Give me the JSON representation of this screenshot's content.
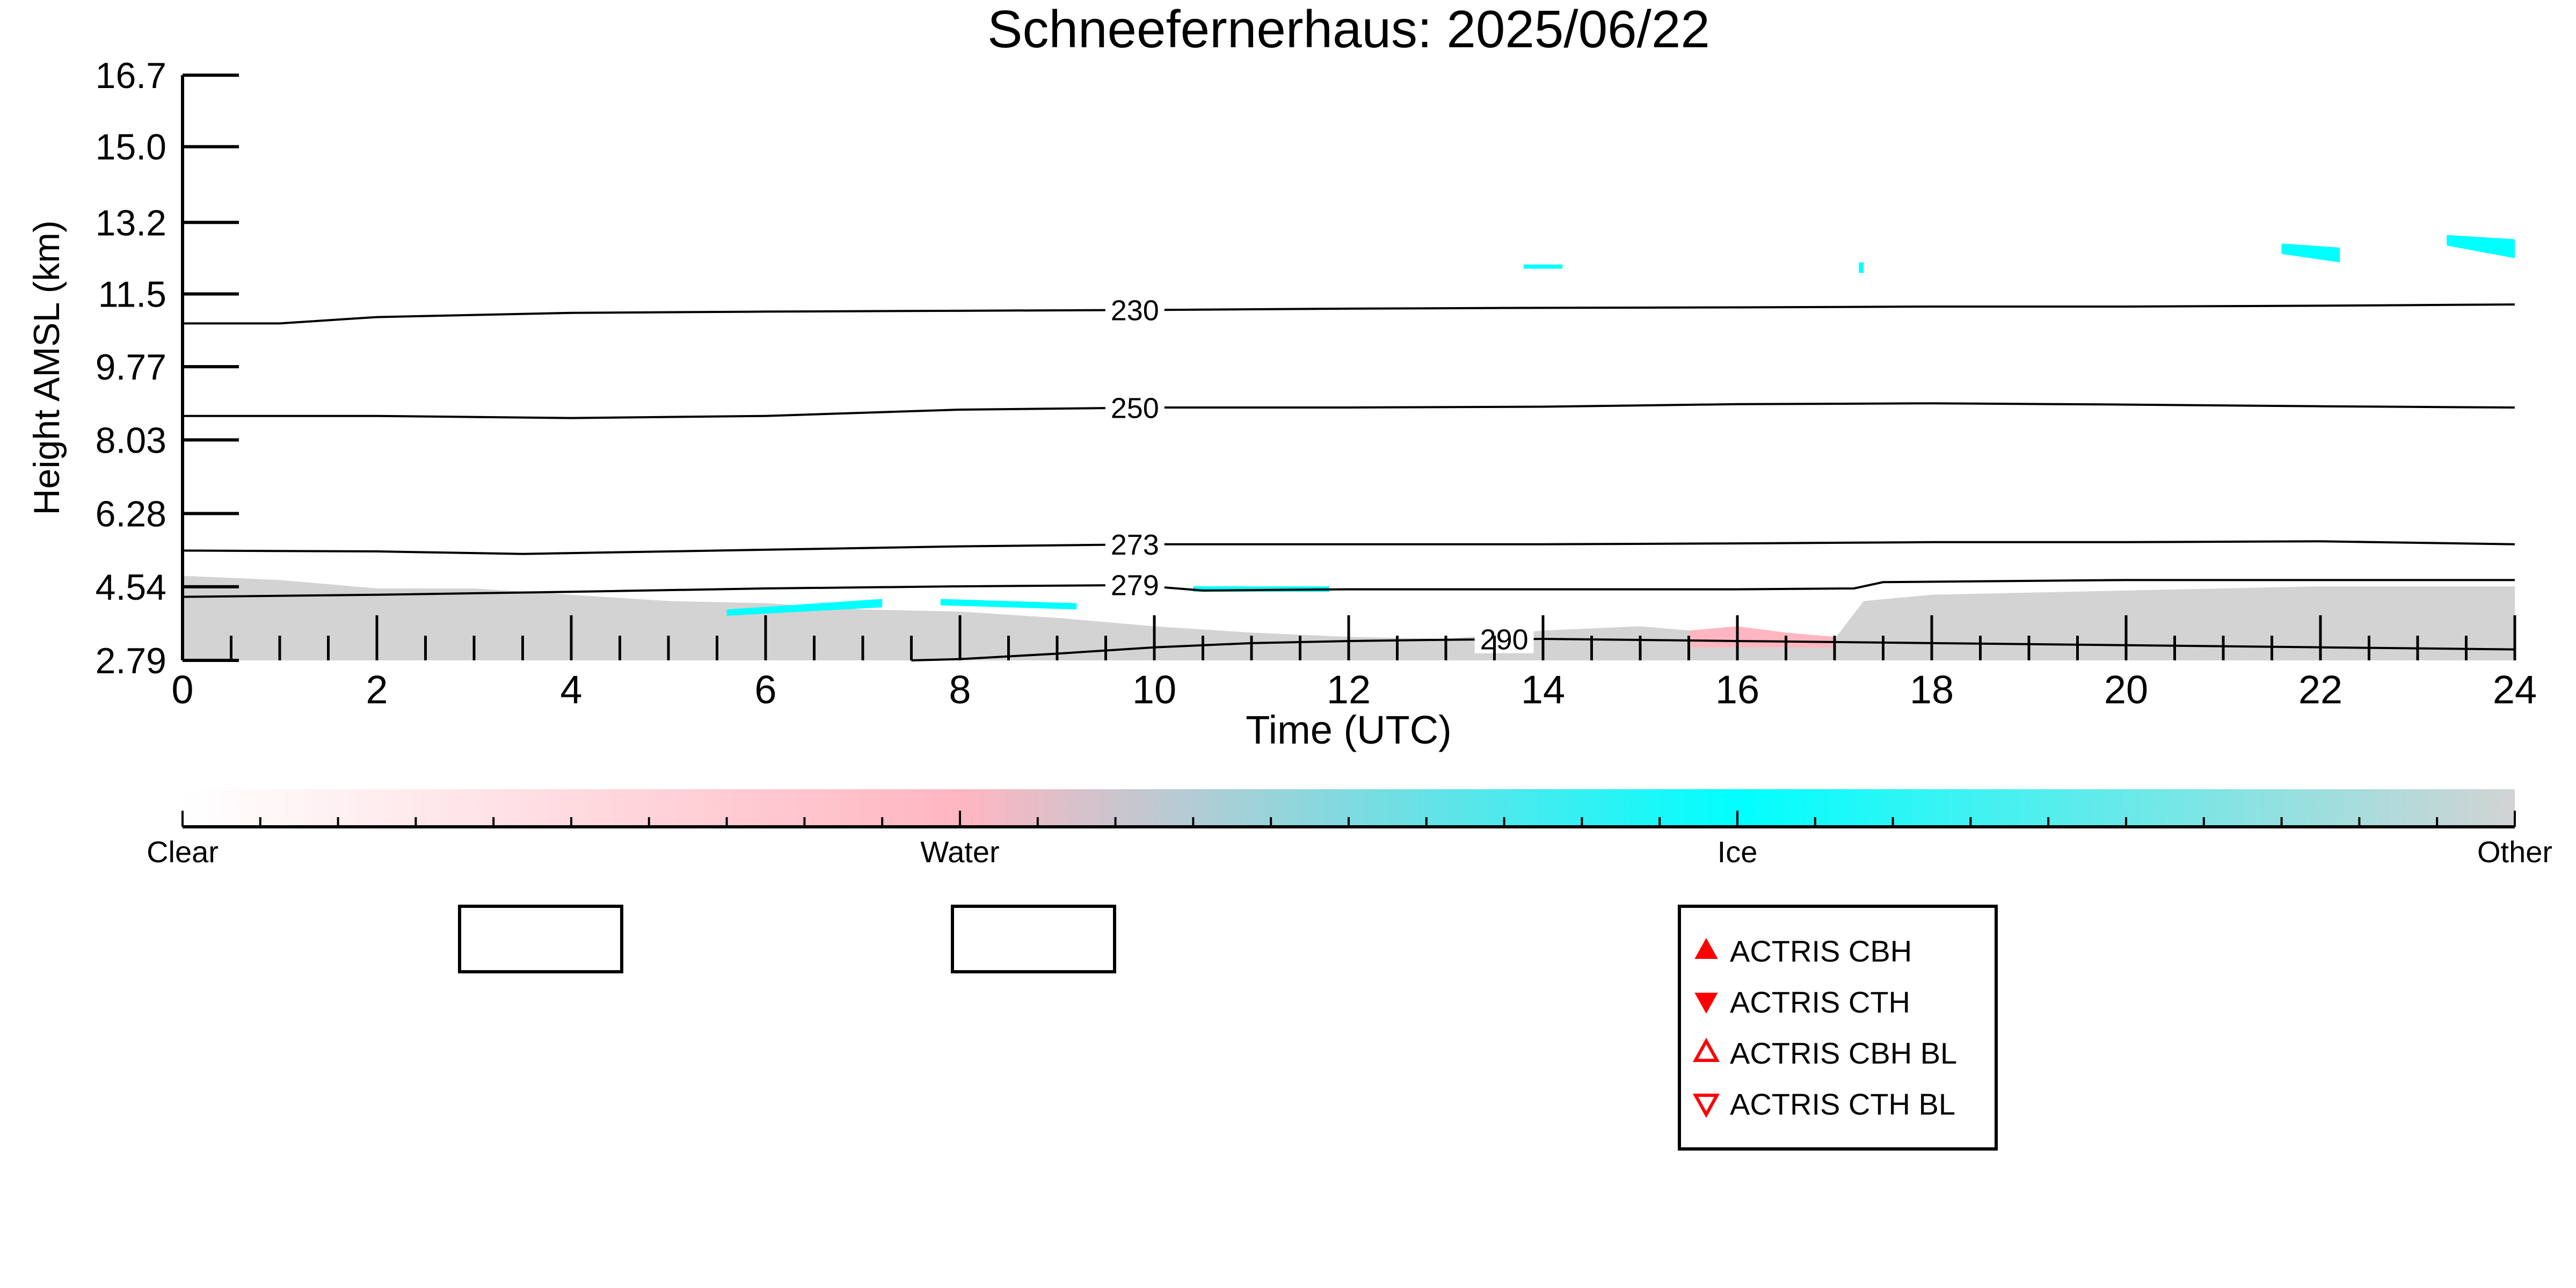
{
  "chart_data": {
    "type": "heatmap",
    "title": "Schneefernerhaus: 2025/06/22",
    "xlabel": "Time (UTC)",
    "ylabel": "Height AMSL (km)",
    "xlim": [
      0,
      24
    ],
    "ylim": [
      2.79,
      16.7
    ],
    "x_ticks": [
      "0",
      "2",
      "4",
      "6",
      "8",
      "10",
      "12",
      "14",
      "16",
      "18",
      "20",
      "22",
      "24"
    ],
    "y_ticks": [
      "2.79",
      "4.54",
      "6.28",
      "8.03",
      "9.77",
      "11.5",
      "13.2",
      "15.0",
      "16.7"
    ],
    "y_tick_values": [
      2.79,
      4.54,
      6.28,
      8.03,
      9.77,
      11.5,
      13.2,
      15.0,
      16.7
    ],
    "grid": false,
    "colorbar": {
      "labels": [
        "Clear",
        "Water",
        "Ice",
        "Other"
      ],
      "colors": [
        "#ffffff",
        "#ffb6c1",
        "#00ffff",
        "#d3d3d3"
      ]
    },
    "contours": [
      {
        "label": "230",
        "label_x": 9.8,
        "points": [
          [
            0,
            10.8
          ],
          [
            1,
            10.8
          ],
          [
            2,
            10.95
          ],
          [
            4,
            11.05
          ],
          [
            6,
            11.08
          ],
          [
            8,
            11.1
          ],
          [
            10,
            11.12
          ],
          [
            12,
            11.15
          ],
          [
            14,
            11.17
          ],
          [
            16,
            11.18
          ],
          [
            18,
            11.2
          ],
          [
            20,
            11.2
          ],
          [
            22,
            11.22
          ],
          [
            24,
            11.25
          ]
        ]
      },
      {
        "label": "250",
        "label_x": 9.8,
        "points": [
          [
            0,
            8.6
          ],
          [
            2,
            8.6
          ],
          [
            4,
            8.55
          ],
          [
            6,
            8.6
          ],
          [
            8,
            8.75
          ],
          [
            10,
            8.8
          ],
          [
            12,
            8.8
          ],
          [
            14,
            8.82
          ],
          [
            16,
            8.88
          ],
          [
            18,
            8.9
          ],
          [
            20,
            8.87
          ],
          [
            22,
            8.83
          ],
          [
            24,
            8.8
          ]
        ]
      },
      {
        "label": "273",
        "label_x": 9.8,
        "points": [
          [
            0,
            5.4
          ],
          [
            2,
            5.38
          ],
          [
            3.5,
            5.32
          ],
          [
            6,
            5.42
          ],
          [
            8,
            5.5
          ],
          [
            10,
            5.55
          ],
          [
            12,
            5.55
          ],
          [
            14,
            5.55
          ],
          [
            16,
            5.57
          ],
          [
            18,
            5.6
          ],
          [
            20,
            5.6
          ],
          [
            22,
            5.62
          ],
          [
            24,
            5.55
          ]
        ]
      },
      {
        "label": "279",
        "label_x": 9.8,
        "points": [
          [
            0,
            4.3
          ],
          [
            2,
            4.35
          ],
          [
            4,
            4.42
          ],
          [
            6,
            4.5
          ],
          [
            8,
            4.55
          ],
          [
            9.8,
            4.58
          ],
          [
            10.5,
            4.45
          ],
          [
            12,
            4.48
          ],
          [
            14,
            4.48
          ],
          [
            16,
            4.48
          ],
          [
            17.2,
            4.5
          ],
          [
            17.5,
            4.65
          ],
          [
            20,
            4.7
          ],
          [
            24,
            4.7
          ]
        ]
      },
      {
        "label": "290",
        "label_x": 13.6,
        "points": [
          [
            7.5,
            2.79
          ],
          [
            8,
            2.82
          ],
          [
            9,
            2.95
          ],
          [
            10,
            3.1
          ],
          [
            11,
            3.2
          ],
          [
            12,
            3.25
          ],
          [
            13,
            3.28
          ],
          [
            14,
            3.3
          ],
          [
            16,
            3.25
          ],
          [
            18,
            3.2
          ],
          [
            20,
            3.15
          ],
          [
            22,
            3.1
          ],
          [
            24,
            3.05
          ]
        ]
      }
    ],
    "regions": [
      {
        "class": "Other",
        "points": [
          [
            0,
            4.8
          ],
          [
            1,
            4.7
          ],
          [
            2,
            4.5
          ],
          [
            3,
            4.5
          ],
          [
            4,
            4.35
          ],
          [
            5,
            4.2
          ],
          [
            6,
            4.15
          ],
          [
            7,
            4.0
          ],
          [
            8,
            3.95
          ],
          [
            9,
            3.8
          ],
          [
            10,
            3.6
          ],
          [
            11,
            3.45
          ],
          [
            12,
            3.35
          ],
          [
            13,
            3.3
          ],
          [
            14,
            3.5
          ],
          [
            15,
            3.6
          ],
          [
            16,
            3.4
          ],
          [
            17,
            3.3
          ],
          [
            17.3,
            4.2
          ],
          [
            18,
            4.35
          ],
          [
            20,
            4.45
          ],
          [
            22,
            4.55
          ],
          [
            24,
            4.55
          ],
          [
            24,
            2.79
          ],
          [
            0,
            2.79
          ]
        ]
      },
      {
        "class": "Water",
        "points": [
          [
            15.5,
            3.5
          ],
          [
            16,
            3.6
          ],
          [
            16.5,
            3.45
          ],
          [
            17,
            3.35
          ],
          [
            17,
            3.1
          ],
          [
            15.5,
            3.1
          ]
        ]
      },
      {
        "class": "Ice",
        "points": [
          [
            5.6,
            4.0
          ],
          [
            7.2,
            4.25
          ],
          [
            7.2,
            4.05
          ],
          [
            5.6,
            3.85
          ]
        ]
      },
      {
        "class": "Ice",
        "points": [
          [
            7.8,
            4.25
          ],
          [
            9.2,
            4.15
          ],
          [
            9.2,
            4.0
          ],
          [
            7.8,
            4.1
          ]
        ]
      },
      {
        "class": "Ice",
        "points": [
          [
            10.4,
            4.55
          ],
          [
            11.8,
            4.55
          ],
          [
            11.8,
            4.42
          ],
          [
            10.4,
            4.42
          ]
        ]
      },
      {
        "class": "Ice",
        "points": [
          [
            21.6,
            12.7
          ],
          [
            22.2,
            12.6
          ],
          [
            22.2,
            12.25
          ],
          [
            21.6,
            12.45
          ]
        ]
      },
      {
        "class": "Ice",
        "points": [
          [
            23.3,
            12.9
          ],
          [
            24,
            12.8
          ],
          [
            24,
            12.35
          ],
          [
            23.3,
            12.65
          ]
        ]
      },
      {
        "class": "Ice",
        "points": [
          [
            13.8,
            12.2
          ],
          [
            14.2,
            12.2
          ],
          [
            14.2,
            12.1
          ],
          [
            13.8,
            12.1
          ]
        ]
      },
      {
        "class": "Ice",
        "points": [
          [
            17.25,
            12.25
          ],
          [
            17.3,
            12.25
          ],
          [
            17.3,
            12.0
          ],
          [
            17.25,
            12.0
          ]
        ]
      }
    ],
    "legend": {
      "placement": "bottom-center",
      "items": [
        {
          "label": "ACTRIS CBH",
          "marker": "filled-up-triangle",
          "color": "#ff0000"
        },
        {
          "label": "ACTRIS CTH",
          "marker": "filled-down-triangle",
          "color": "#ff0000"
        },
        {
          "label": "ACTRIS CBH BL",
          "marker": "open-up-triangle",
          "color": "#ff0000"
        },
        {
          "label": "ACTRIS CTH BL",
          "marker": "open-down-triangle",
          "color": "#ff0000"
        }
      ]
    }
  }
}
